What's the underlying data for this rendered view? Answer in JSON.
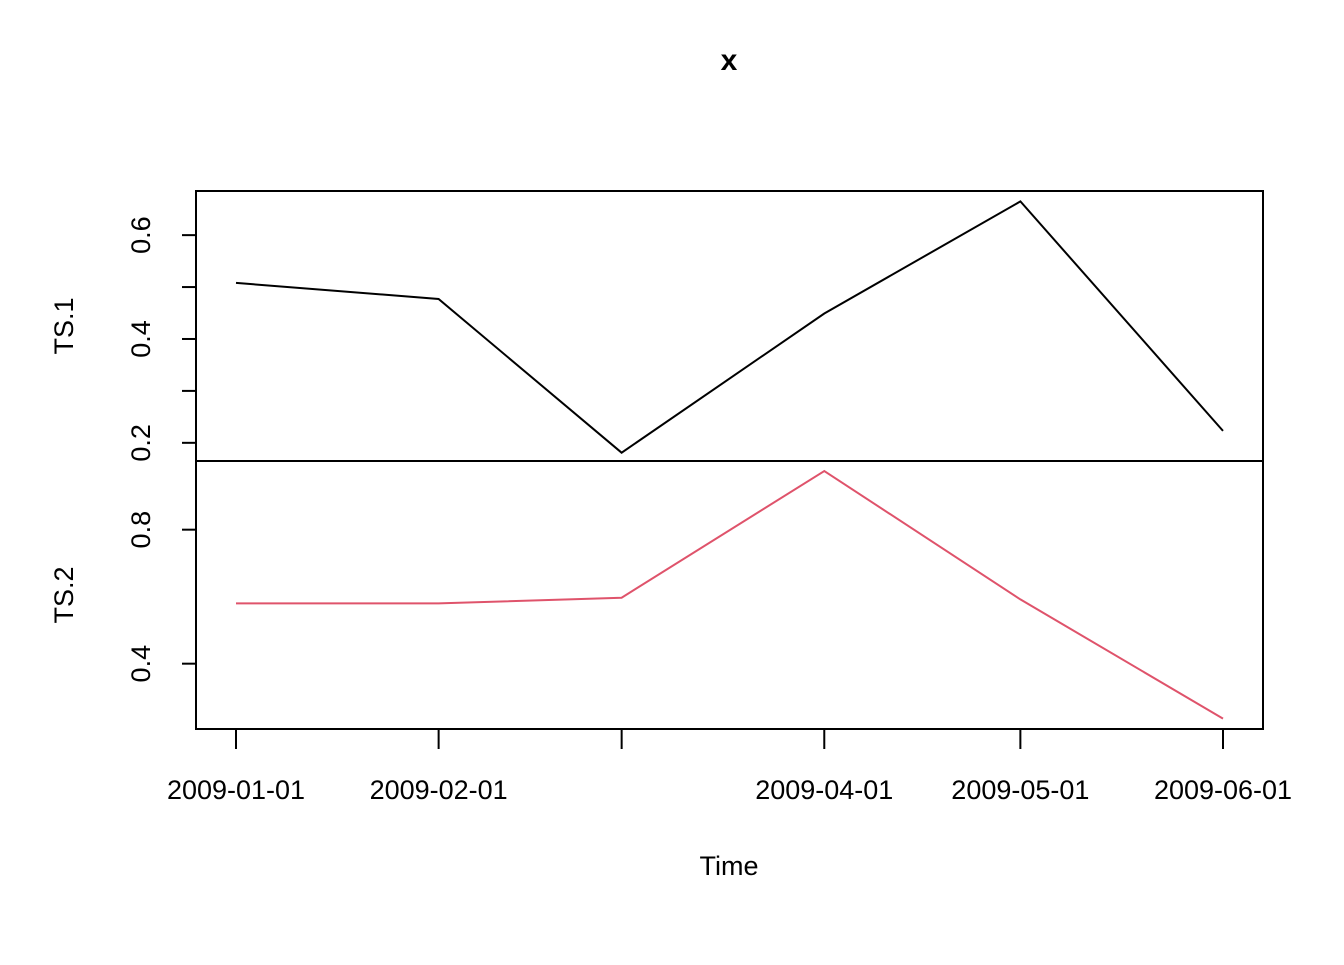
{
  "chart_data": {
    "type": "line",
    "title": "x",
    "xlabel": "Time",
    "x": [
      "2009-01-01",
      "2009-02-01",
      "2009-03-01",
      "2009-04-01",
      "2009-05-01",
      "2009-06-01"
    ],
    "x_tick_labels": [
      "2009-01-01",
      "2009-02-01",
      "",
      "2009-04-01",
      "2009-05-01",
      "2009-06-01"
    ],
    "panels": [
      {
        "ylabel": "TS.1",
        "ylim": [
          0.165,
          0.685
        ],
        "y_ticks": [
          0.2,
          0.3,
          0.4,
          0.5,
          0.6
        ],
        "y_tick_labels": [
          "0.2",
          "",
          "0.4",
          "",
          "0.6"
        ],
        "series": [
          {
            "color": "#000000",
            "values": [
              0.508,
              0.477,
              0.181,
              0.449,
              0.665,
              0.223
            ]
          }
        ]
      },
      {
        "ylabel": "TS.2",
        "ylim": [
          0.205,
          1.005
        ],
        "y_ticks": [
          0.4,
          0.8
        ],
        "y_tick_labels": [
          "0.4",
          "0.8"
        ],
        "series": [
          {
            "color": "#DF536B",
            "values": [
              0.58,
              0.58,
              0.597,
              0.975,
              0.592,
              0.236
            ]
          }
        ]
      }
    ],
    "grid": false,
    "legend": "none"
  }
}
